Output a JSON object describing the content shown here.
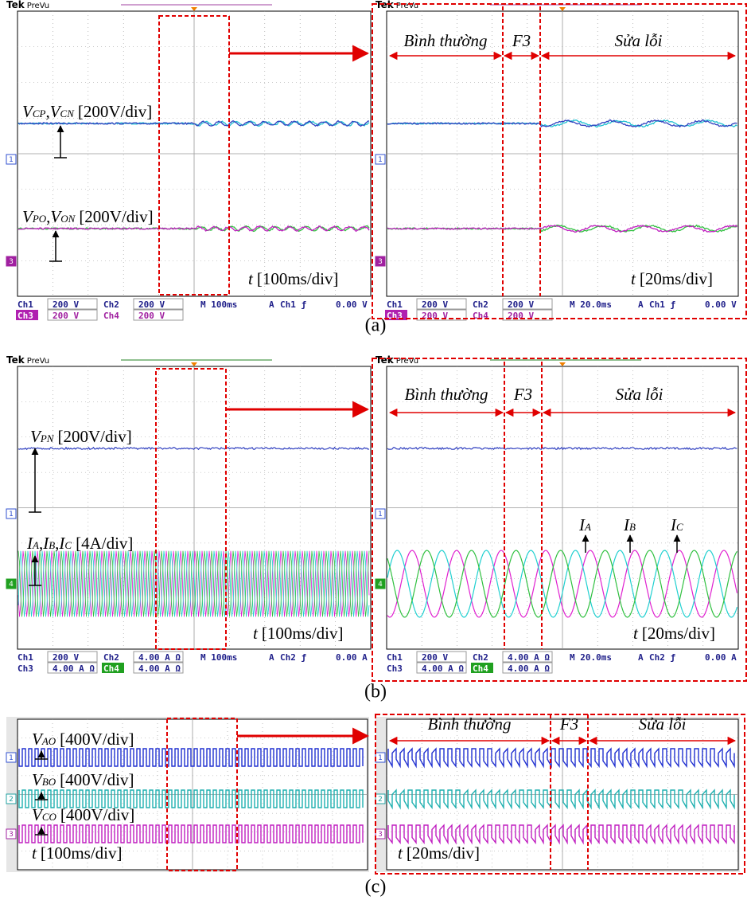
{
  "panels": [
    {
      "caption": "(a)",
      "scopes": [
        {
          "brand": "Tek",
          "mode": "PreVu",
          "markers": [
            "1",
            "3"
          ],
          "labels": [
            {
              "terms": [
                {
                  "v": "V",
                  "sub": "CP",
                  "sep": ","
                },
                {
                  "v": "V",
                  "sub": "CN"
                }
              ],
              "unit": "[200V/div]"
            },
            {
              "terms": [
                {
                  "v": "V",
                  "sub": "PO",
                  "sep": ","
                },
                {
                  "v": "V",
                  "sub": "ON"
                }
              ],
              "unit": "[200V/div]"
            }
          ],
          "time": {
            "v": "t",
            "unit": "[100ms/div]"
          },
          "readout": [
            [
              "Ch1",
              "200 V",
              "Ch2",
              "200 V",
              "M 100ms",
              "A",
              "Ch1 ƒ",
              "0.00 V"
            ],
            [
              "Ch3",
              "200 V",
              "Ch4",
              "200 V"
            ]
          ]
        },
        {
          "brand": "Tek",
          "mode": "PreVu",
          "markers": [
            "1",
            "3"
          ],
          "regions": [
            "Bình thường",
            "F3",
            "Sửa lỗi"
          ],
          "time": {
            "v": "t",
            "unit": "[20ms/div]"
          },
          "readout": [
            [
              "Ch1",
              "200 V",
              "Ch2",
              "200 V",
              "M 20.0ms",
              "A",
              "Ch1 ƒ",
              "0.00 V"
            ],
            [
              "Ch3",
              "200 V",
              "Ch4",
              "200 V"
            ]
          ]
        }
      ]
    },
    {
      "caption": "(b)",
      "scopes": [
        {
          "brand": "Tek",
          "mode": "PreVu",
          "markers": [
            "1",
            "4"
          ],
          "labels": [
            {
              "terms": [
                {
                  "v": "V",
                  "sub": "PN"
                }
              ],
              "unit": "[200V/div]"
            },
            {
              "terms": [
                {
                  "v": "I",
                  "sub": "A",
                  "sep": ","
                },
                {
                  "v": "I",
                  "sub": "B",
                  "sep": ","
                },
                {
                  "v": "I",
                  "sub": "C"
                }
              ],
              "unit": "[4A/div]"
            }
          ],
          "time": {
            "v": "t",
            "unit": "[100ms/div]"
          },
          "readout": [
            [
              "Ch1",
              "200 V",
              "Ch2",
              "4.00 A Ω",
              "M 100ms",
              "A",
              "Ch2 ƒ",
              "0.00 A"
            ],
            [
              "Ch3",
              "4.00 A Ω",
              "Ch4",
              "4.00 A Ω"
            ]
          ]
        },
        {
          "brand": "Tek",
          "mode": "PreVu",
          "markers": [
            "1",
            "4"
          ],
          "regions": [
            "Bình thường",
            "F3",
            "Sửa lỗi"
          ],
          "annotations": [
            {
              "v": "I",
              "sub": "A"
            },
            {
              "v": "I",
              "sub": "B"
            },
            {
              "v": "I",
              "sub": "C"
            }
          ],
          "time": {
            "v": "t",
            "unit": "[20ms/div]"
          },
          "readout": [
            [
              "Ch1",
              "200 V",
              "Ch2",
              "4.00 A Ω",
              "M 20.0ms",
              "A",
              "Ch2 ƒ",
              "0.00 A"
            ],
            [
              "Ch3",
              "4.00 A Ω",
              "Ch4",
              "4.00 A Ω"
            ]
          ]
        }
      ]
    },
    {
      "caption": "(c)",
      "scopes": [
        {
          "markers": [
            "1",
            "2",
            "3"
          ],
          "labels": [
            {
              "terms": [
                {
                  "v": "V",
                  "sub": "AO"
                }
              ],
              "unit": "[400V/div]"
            },
            {
              "terms": [
                {
                  "v": "V",
                  "sub": "BO"
                }
              ],
              "unit": "[400V/div]"
            },
            {
              "terms": [
                {
                  "v": "V",
                  "sub": "CO"
                }
              ],
              "unit": "[400V/div]"
            }
          ],
          "time": {
            "v": "t",
            "unit": "[100ms/div]"
          }
        },
        {
          "markers": [
            "1",
            "2",
            "3"
          ],
          "regions": [
            "Bình thường",
            "F3",
            "Sửa lỗi"
          ],
          "time": {
            "v": "t",
            "unit": "[20ms/div]"
          }
        }
      ]
    }
  ]
}
